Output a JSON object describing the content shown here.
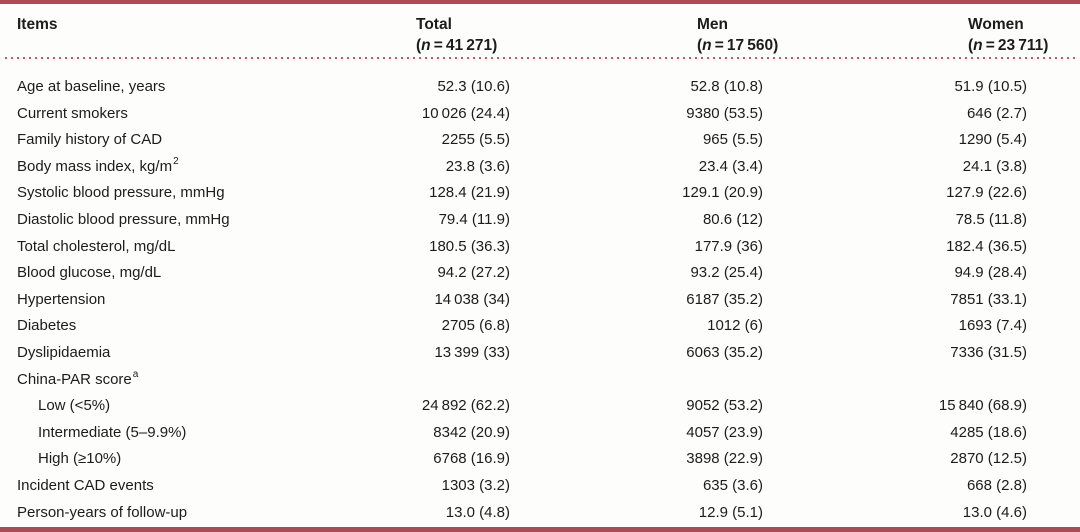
{
  "table": {
    "columns": [
      {
        "label": "Items"
      },
      {
        "label": "Total",
        "sub_open": "(",
        "sub_n": "n",
        "sub_rest": " = 41 271)"
      },
      {
        "label": "Men",
        "sub_open": "(",
        "sub_n": "n",
        "sub_rest": " = 17 560)"
      },
      {
        "label": "Women",
        "sub_open": "(",
        "sub_n": "n",
        "sub_rest": " = 23 711)"
      }
    ],
    "rows": [
      {
        "item": "Age at baseline, years",
        "total": "52.3 (10.6)",
        "men": "52.8 (10.8)",
        "women": "51.9 (10.5)"
      },
      {
        "item": "Current smokers",
        "total": "10 026 (24.4)",
        "men": "9380 (53.5)",
        "women": "646 (2.7)"
      },
      {
        "item": "Family history of CAD",
        "total": "2255 (5.5)",
        "men": "965 (5.5)",
        "women": "1290 (5.4)"
      },
      {
        "item": "Body mass index, kg/m",
        "item_sup": "2",
        "total": "23.8 (3.6)",
        "men": "23.4 (3.4)",
        "women": "24.1 (3.8)"
      },
      {
        "item": "Systolic blood pressure, mmHg",
        "total": "128.4 (21.9)",
        "men": "129.1 (20.9)",
        "women": "127.9 (22.6)"
      },
      {
        "item": "Diastolic blood pressure, mmHg",
        "total": "79.4 (11.9)",
        "men": "80.6 (12)",
        "women": "78.5 (11.8)"
      },
      {
        "item": "Total cholesterol, mg/dL",
        "total": "180.5 (36.3)",
        "men": "177.9 (36)",
        "women": "182.4 (36.5)"
      },
      {
        "item": "Blood glucose, mg/dL",
        "total": "94.2 (27.2)",
        "men": "93.2 (25.4)",
        "women": "94.9 (28.4)"
      },
      {
        "item": "Hypertension",
        "total": "14 038 (34)",
        "men": "6187 (35.2)",
        "women": "7851 (33.1)"
      },
      {
        "item": "Diabetes",
        "total": "2705 (6.8)",
        "men": "1012 (6)",
        "women": "1693 (7.4)"
      },
      {
        "item": "Dyslipidaemia",
        "total": "13 399 (33)",
        "men": "6063 (35.2)",
        "women": "7336 (31.5)"
      },
      {
        "item": "China-PAR score",
        "item_sup": "a",
        "total": "",
        "men": "",
        "women": ""
      },
      {
        "item": "Low (<5%)",
        "total": "24 892 (62.2)",
        "men": "9052 (53.2)",
        "women": "15 840 (68.9)"
      },
      {
        "item": "Intermediate (5–9.9%)",
        "total": "8342 (20.9)",
        "men": "4057 (23.9)",
        "women": "4285 (18.6)"
      },
      {
        "item": "High (≥10%)",
        "total": "6768 (16.9)",
        "men": "3898 (22.9)",
        "women": "2870 (12.5)"
      },
      {
        "item": "Incident CAD events",
        "total": "1303 (3.2)",
        "men": "635 (3.6)",
        "women": "668 (2.8)"
      },
      {
        "item": "Person-years of follow-up",
        "total": "13.0 (4.8)",
        "men": "12.9 (5.1)",
        "women": "13.0 (4.6)"
      }
    ]
  },
  "colors": {
    "border_red": "#b04a52",
    "dotted_rule": "#c5536a",
    "text": "#1c1c1c",
    "background": "#fdfdfc"
  }
}
